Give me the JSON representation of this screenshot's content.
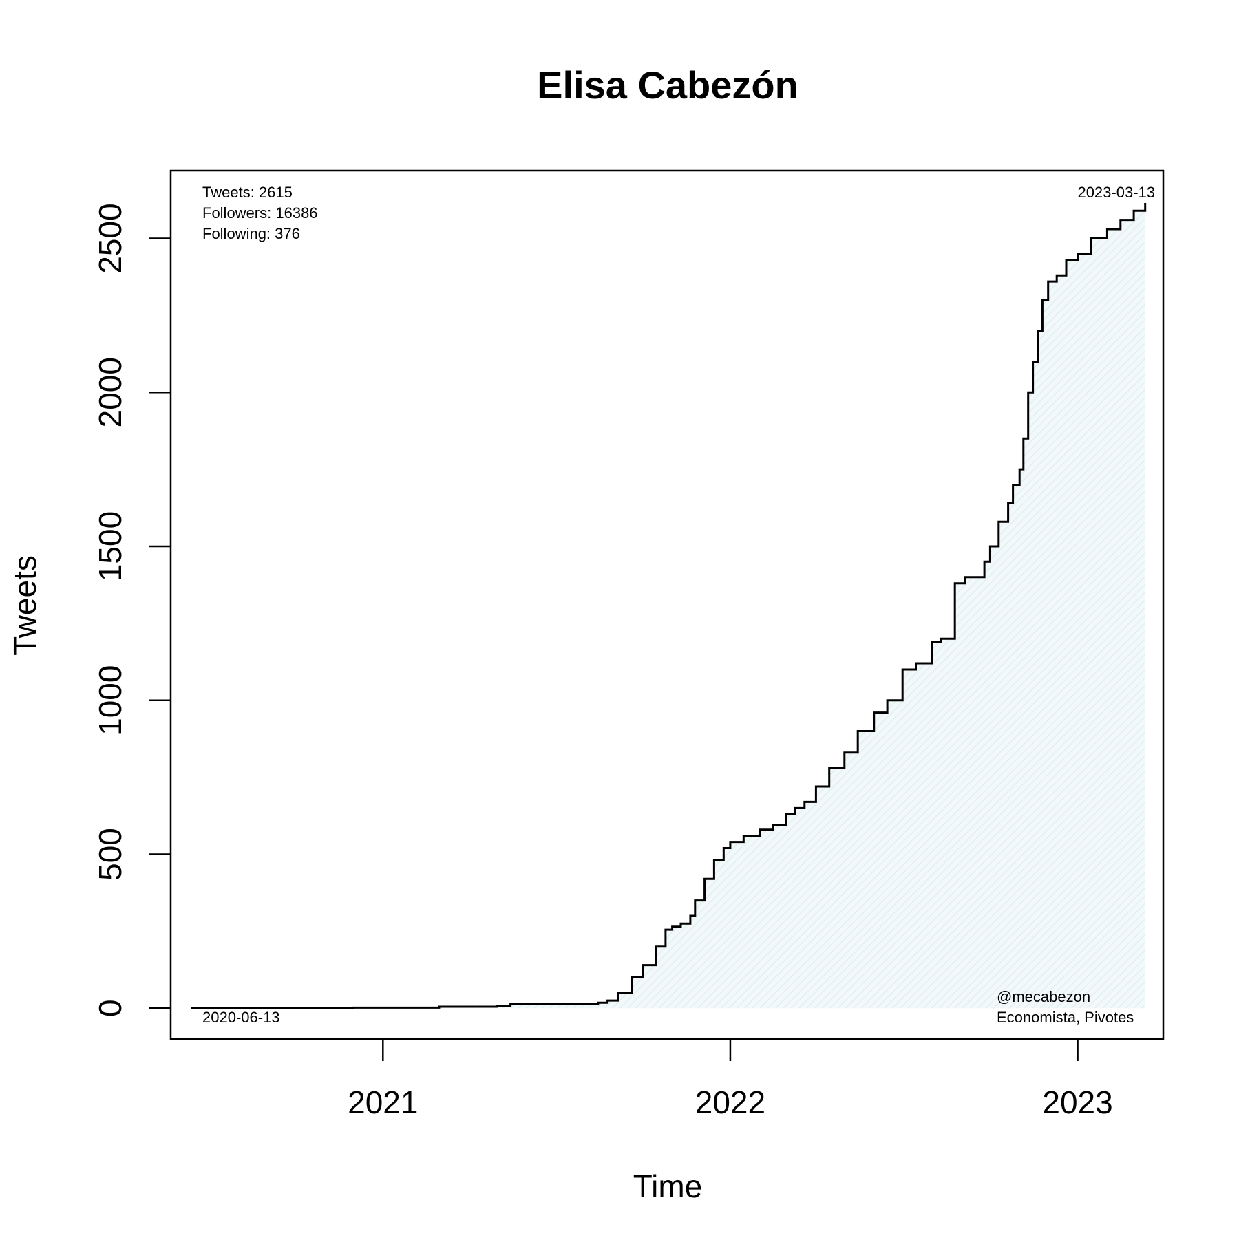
{
  "chart_data": {
    "type": "line",
    "title": "Elisa Cabezón",
    "xlabel": "Time",
    "ylabel": "Tweets",
    "x_axis": {
      "type": "date",
      "range": [
        "2020-05-23",
        "2023-04-01"
      ],
      "ticks": [
        "2021-01-01",
        "2022-01-01",
        "2023-01-01"
      ],
      "tick_labels": [
        "2021",
        "2022",
        "2023"
      ]
    },
    "y_axis": {
      "range": [
        -100,
        2720
      ],
      "ticks": [
        0,
        500,
        1000,
        1500,
        2000,
        2500
      ],
      "tick_labels": [
        "0",
        "500",
        "1000",
        "1500",
        "2000",
        "2500"
      ]
    },
    "grid": false,
    "fill_under_line": true,
    "colors": {
      "line": "#000000",
      "fill": "#e6f3f5",
      "frame": "#000000"
    },
    "stats": {
      "tweets": "Tweets: 2615",
      "followers": "Followers: 16386",
      "following": "Following: 376"
    },
    "start_date_label": "2020-06-13",
    "end_date_label": "2023-03-13",
    "handle": "@mecabezon",
    "description": "Economista, Pivotes",
    "series": [
      {
        "x": [
          "2020-06-13",
          "2020-09-01",
          "2020-12-01",
          "2021-03-01",
          "2021-05-01",
          "2021-05-15",
          "2021-06-15",
          "2021-08-15",
          "2021-08-25",
          "2021-09-05",
          "2021-09-20",
          "2021-10-01",
          "2021-10-15",
          "2021-10-25",
          "2021-11-01",
          "2021-11-10",
          "2021-11-20",
          "2021-11-25",
          "2021-12-05",
          "2021-12-15",
          "2021-12-25",
          "2022-01-01",
          "2022-01-15",
          "2022-02-01",
          "2022-02-15",
          "2022-03-01",
          "2022-03-10",
          "2022-03-20",
          "2022-04-01",
          "2022-04-15",
          "2022-05-01",
          "2022-05-15",
          "2022-06-01",
          "2022-06-15",
          "2022-07-01",
          "2022-07-15",
          "2022-08-01",
          "2022-08-10",
          "2022-08-25",
          "2022-09-05",
          "2022-09-25",
          "2022-10-01",
          "2022-10-10",
          "2022-10-20",
          "2022-10-25",
          "2022-11-01",
          "2022-11-05",
          "2022-11-10",
          "2022-11-15",
          "2022-11-20",
          "2022-11-25",
          "2022-12-01",
          "2022-12-10",
          "2022-12-20",
          "2023-01-01",
          "2023-01-15",
          "2023-02-01",
          "2023-02-15",
          "2023-03-01",
          "2023-03-13"
        ],
        "y": [
          0,
          0,
          2,
          5,
          8,
          15,
          15,
          18,
          25,
          50,
          100,
          140,
          200,
          255,
          265,
          275,
          300,
          350,
          420,
          480,
          520,
          540,
          560,
          580,
          595,
          630,
          650,
          670,
          720,
          780,
          830,
          900,
          960,
          1000,
          1100,
          1120,
          1190,
          1200,
          1380,
          1400,
          1450,
          1500,
          1580,
          1640,
          1700,
          1750,
          1850,
          2000,
          2100,
          2200,
          2300,
          2360,
          2380,
          2430,
          2450,
          2500,
          2530,
          2560,
          2590,
          2615
        ]
      }
    ]
  }
}
